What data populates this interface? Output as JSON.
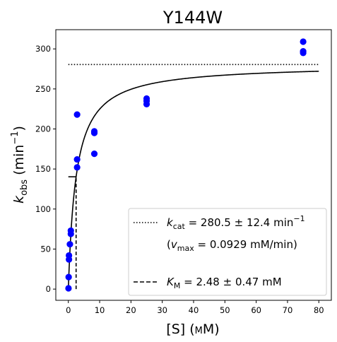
{
  "chart_data": {
    "type": "scatter",
    "title": "Y144W",
    "xlabel": {
      "text": "[S] (",
      "unit": "mM",
      "close": ")"
    },
    "ylabel": {
      "base": "k",
      "sub": "obs",
      "unit": " (min",
      "sup": "−1",
      "close": ")"
    },
    "xlim": [
      -4,
      84
    ],
    "ylim": [
      -14,
      324
    ],
    "xticks": [
      0,
      10,
      20,
      30,
      40,
      50,
      60,
      70,
      80
    ],
    "yticks": [
      0,
      50,
      100,
      150,
      200,
      250,
      300
    ],
    "grid": false,
    "legend_position": "lower-right",
    "colors": {
      "points": "#0000ff",
      "lines": "#000000"
    },
    "points": [
      {
        "x": 0.05,
        "y": 1
      },
      {
        "x": 0.1,
        "y": 15
      },
      {
        "x": 0.2,
        "y": 37
      },
      {
        "x": 0.2,
        "y": 42
      },
      {
        "x": 0.5,
        "y": 56
      },
      {
        "x": 0.8,
        "y": 69
      },
      {
        "x": 0.8,
        "y": 73
      },
      {
        "x": 2.8,
        "y": 152
      },
      {
        "x": 2.8,
        "y": 162
      },
      {
        "x": 2.8,
        "y": 218
      },
      {
        "x": 8.3,
        "y": 169
      },
      {
        "x": 8.3,
        "y": 195
      },
      {
        "x": 8.3,
        "y": 197
      },
      {
        "x": 25,
        "y": 231
      },
      {
        "x": 25,
        "y": 235
      },
      {
        "x": 25,
        "y": 238
      },
      {
        "x": 75,
        "y": 295
      },
      {
        "x": 75,
        "y": 297
      },
      {
        "x": 75,
        "y": 309
      }
    ],
    "fit": {
      "model": "michaelis-menten",
      "kcat": 280.5,
      "km": 2.48,
      "x_range": [
        0,
        80
      ]
    },
    "kcat_line": {
      "y": 280.5,
      "x_range": [
        0,
        80
      ]
    },
    "km_marker": {
      "x": 2.48,
      "y_range": [
        0,
        140.25
      ],
      "tick_x_range": [
        0,
        2.48
      ]
    },
    "legend": {
      "kcat": {
        "base": "k",
        "sub": "cat",
        "text": " = 280.5 ± 12.4 min",
        "sup": "−1"
      },
      "vmax": {
        "open": "(",
        "base": "v",
        "sub": "max",
        "text": " = 0.0929 mM/min)"
      },
      "km": {
        "base": "K",
        "sub": "M",
        "text": " = 2.48 ± 0.47 mM"
      }
    }
  }
}
